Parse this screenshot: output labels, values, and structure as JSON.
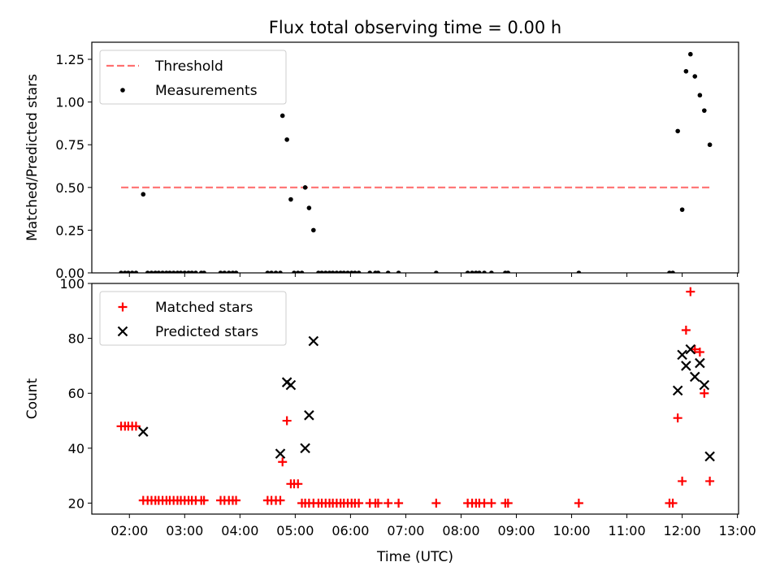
{
  "figure": {
    "title": "Flux total observing time = 0.00 h",
    "xlabel": "Time (UTC)",
    "xticks": [
      {
        "label": "02:00",
        "h": 2
      },
      {
        "label": "03:00",
        "h": 3
      },
      {
        "label": "04:00",
        "h": 4
      },
      {
        "label": "05:00",
        "h": 5
      },
      {
        "label": "06:00",
        "h": 6
      },
      {
        "label": "07:00",
        "h": 7
      },
      {
        "label": "08:00",
        "h": 8
      },
      {
        "label": "09:00",
        "h": 9
      },
      {
        "label": "10:00",
        "h": 10
      },
      {
        "label": "11:00",
        "h": 11
      },
      {
        "label": "12:00",
        "h": 12
      },
      {
        "label": "13:00",
        "h": 13
      }
    ],
    "xlim": [
      1.32,
      13.02
    ],
    "colors": {
      "threshold": "#ff7070",
      "measurements": "#000000",
      "matched": "#ff0000",
      "predicted": "#000000"
    }
  },
  "chart_data": [
    {
      "type": "scatter",
      "ylabel": "Matched/Predicted stars",
      "ylim": [
        0,
        1.35
      ],
      "yticks": [
        "0.00",
        "0.25",
        "0.50",
        "0.75",
        "1.00",
        "1.25"
      ],
      "ytick_values": [
        0,
        0.25,
        0.5,
        0.75,
        1.0,
        1.25
      ],
      "legend": {
        "placement": "top-left",
        "entries": [
          "Threshold",
          "Measurements"
        ]
      },
      "threshold": {
        "name": "Threshold",
        "y": 0.5,
        "x_range": [
          1.85,
          12.52
        ]
      },
      "series": [
        {
          "name": "Measurements",
          "x": [
            1.85,
            1.92,
            1.98,
            2.05,
            2.12,
            2.25,
            2.33,
            2.4,
            2.47,
            2.53,
            2.6,
            2.67,
            2.73,
            2.8,
            2.87,
            2.93,
            3.0,
            3.07,
            3.13,
            3.2,
            3.3,
            3.35,
            3.65,
            3.72,
            3.8,
            3.87,
            3.93,
            4.5,
            4.57,
            4.65,
            4.73,
            4.77,
            4.85,
            4.92,
            4.98,
            5.05,
            5.12,
            5.18,
            5.25,
            5.33,
            5.42,
            5.48,
            5.55,
            5.62,
            5.68,
            5.75,
            5.82,
            5.88,
            5.95,
            6.02,
            6.08,
            6.15,
            6.35,
            6.45,
            6.5,
            6.68,
            6.87,
            7.55,
            8.12,
            8.2,
            8.27,
            8.33,
            8.42,
            8.55,
            8.8,
            8.85,
            10.13,
            11.77,
            11.83,
            11.92,
            12.0,
            12.07,
            12.15,
            12.23,
            12.32,
            12.4,
            12.5
          ],
          "y": [
            0,
            0,
            0,
            0,
            0,
            0.46,
            0,
            0,
            0,
            0,
            0,
            0,
            0,
            0,
            0,
            0,
            0,
            0,
            0,
            0,
            0,
            0,
            0,
            0,
            0,
            0,
            0,
            0,
            0,
            0,
            0,
            0.92,
            0.78,
            0.43,
            0,
            0,
            0,
            0.5,
            0.38,
            0.25,
            0,
            0,
            0,
            0,
            0,
            0,
            0,
            0,
            0,
            0,
            0,
            0,
            0,
            0,
            0,
            0,
            0,
            0,
            0,
            0,
            0,
            0,
            0,
            0,
            0,
            0,
            0,
            0,
            0,
            0.83,
            0.37,
            1.18,
            1.28,
            1.15,
            1.04,
            0.95,
            0.75
          ]
        }
      ]
    },
    {
      "type": "scatter",
      "ylabel": "Count",
      "ylim": [
        16,
        100
      ],
      "yticks": [
        "20",
        "40",
        "60",
        "80",
        "100"
      ],
      "ytick_values": [
        20,
        40,
        60,
        80,
        100
      ],
      "legend": {
        "placement": "top-left",
        "entries": [
          "Matched stars",
          "Predicted stars"
        ]
      },
      "series": [
        {
          "name": "Matched stars",
          "x": [
            1.85,
            1.92,
            1.98,
            2.05,
            2.12,
            2.25,
            2.33,
            2.4,
            2.47,
            2.53,
            2.6,
            2.67,
            2.73,
            2.8,
            2.87,
            2.93,
            3.0,
            3.07,
            3.13,
            3.2,
            3.3,
            3.35,
            3.65,
            3.72,
            3.8,
            3.87,
            3.93,
            4.5,
            4.57,
            4.65,
            4.73,
            4.77,
            4.85,
            4.92,
            4.98,
            5.05,
            5.12,
            5.18,
            5.25,
            5.33,
            5.42,
            5.48,
            5.55,
            5.62,
            5.68,
            5.75,
            5.82,
            5.88,
            5.95,
            6.02,
            6.08,
            6.15,
            6.35,
            6.45,
            6.5,
            6.68,
            6.87,
            7.55,
            8.12,
            8.2,
            8.27,
            8.33,
            8.42,
            8.55,
            8.8,
            8.85,
            10.13,
            11.77,
            11.83,
            11.92,
            12.0,
            12.07,
            12.15,
            12.23,
            12.32,
            12.4,
            12.5
          ],
          "y": [
            48,
            48,
            48,
            48,
            48,
            21,
            21,
            21,
            21,
            21,
            21,
            21,
            21,
            21,
            21,
            21,
            21,
            21,
            21,
            21,
            21,
            21,
            21,
            21,
            21,
            21,
            21,
            21,
            21,
            21,
            21,
            35,
            50,
            27,
            27,
            27,
            20,
            20,
            20,
            20,
            20,
            20,
            20,
            20,
            20,
            20,
            20,
            20,
            20,
            20,
            20,
            20,
            20,
            20,
            20,
            20,
            20,
            20,
            20,
            20,
            20,
            20,
            20,
            20,
            20,
            20,
            20,
            20,
            20,
            51,
            28,
            83,
            97,
            76,
            75,
            60,
            28
          ]
        },
        {
          "name": "Predicted stars",
          "x": [
            2.25,
            4.73,
            4.85,
            4.92,
            5.18,
            5.25,
            5.33,
            11.92,
            12.0,
            12.07,
            12.15,
            12.23,
            12.32,
            12.4,
            12.5
          ],
          "y": [
            46,
            38,
            64,
            63,
            40,
            52,
            79,
            61,
            74,
            70,
            76,
            66,
            71,
            63,
            37
          ]
        }
      ]
    }
  ]
}
